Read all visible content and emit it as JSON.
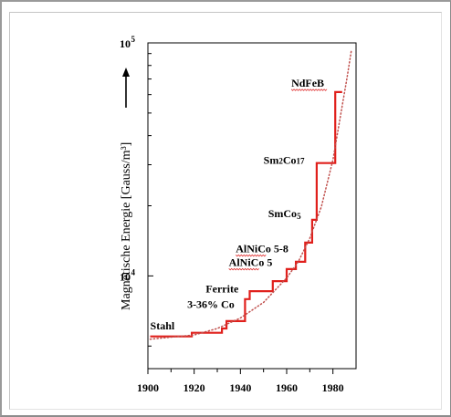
{
  "chart_data": {
    "type": "line",
    "title": "",
    "xlabel": "",
    "ylabel": "Magnetische Energie  [Gauss/m³]",
    "yscale": "log",
    "xlim": [
      1900,
      1990
    ],
    "ylim": [
      4000,
      100000
    ],
    "x_ticks": [
      "1900",
      "1920",
      "1940",
      "1960",
      "1980"
    ],
    "y_ticks": [
      {
        "base": "10",
        "exp": "4"
      },
      {
        "base": "10",
        "exp": "5"
      }
    ],
    "series": [
      {
        "style": "step",
        "color": "#e0201c",
        "points": [
          {
            "x": 1901,
            "y": 5500
          },
          {
            "x": 1919,
            "y": 5500
          },
          {
            "x": 1919,
            "y": 5700
          },
          {
            "x": 1932,
            "y": 5700
          },
          {
            "x": 1932,
            "y": 5950
          },
          {
            "x": 1934,
            "y": 5950
          },
          {
            "x": 1934,
            "y": 6400
          },
          {
            "x": 1942,
            "y": 6400
          },
          {
            "x": 1942,
            "y": 7950
          },
          {
            "x": 1944,
            "y": 7950
          },
          {
            "x": 1944,
            "y": 8600
          },
          {
            "x": 1954,
            "y": 8600
          },
          {
            "x": 1954,
            "y": 9500
          },
          {
            "x": 1960,
            "y": 9500
          },
          {
            "x": 1960,
            "y": 10700
          },
          {
            "x": 1964,
            "y": 10700
          },
          {
            "x": 1964,
            "y": 11500
          },
          {
            "x": 1968,
            "y": 11500
          },
          {
            "x": 1968,
            "y": 13900
          },
          {
            "x": 1971,
            "y": 13900
          },
          {
            "x": 1971,
            "y": 17400
          },
          {
            "x": 1973,
            "y": 17400
          },
          {
            "x": 1973,
            "y": 30500
          },
          {
            "x": 1981,
            "y": 30500
          },
          {
            "x": 1981,
            "y": 61500
          },
          {
            "x": 1984,
            "y": 61500
          }
        ]
      },
      {
        "style": "dotted",
        "color": "#c0504d",
        "points": [
          {
            "x": 1901,
            "y": 5350
          },
          {
            "x": 1920,
            "y": 5580
          },
          {
            "x": 1930,
            "y": 5950
          },
          {
            "x": 1940,
            "y": 6600
          },
          {
            "x": 1950,
            "y": 7700
          },
          {
            "x": 1960,
            "y": 9800
          },
          {
            "x": 1965,
            "y": 11500
          },
          {
            "x": 1970,
            "y": 14500
          },
          {
            "x": 1975,
            "y": 19800
          },
          {
            "x": 1980,
            "y": 31500
          },
          {
            "x": 1983,
            "y": 47000
          },
          {
            "x": 1986,
            "y": 70000
          },
          {
            "x": 1988,
            "y": 93000
          }
        ]
      }
    ],
    "annotations": [
      {
        "id": "stahl",
        "text": "Stahl",
        "x": 1901,
        "y": 5900
      },
      {
        "id": "co",
        "text": "3-36% Co",
        "x": 1917,
        "y": 7300
      },
      {
        "id": "ferrite",
        "text": "Ferrite",
        "x": 1925,
        "y": 8500
      },
      {
        "id": "alnico5",
        "text": "AlNiCo 5",
        "x": 1935,
        "y": 11050
      },
      {
        "id": "alnico58",
        "text": "AlNiCo 5-8",
        "x": 1938,
        "y": 12650
      },
      {
        "id": "smco5",
        "text": "SmCo",
        "sub": "5",
        "x": 1952,
        "y": 17900
      },
      {
        "id": "sm2co17",
        "text": "Sm",
        "sub1": "2",
        "mid": "Co",
        "sub2": "17",
        "x": 1950,
        "y": 30300
      },
      {
        "id": "ndfeb",
        "text": "NdFeB",
        "x": 1962,
        "y": 65000
      }
    ]
  }
}
